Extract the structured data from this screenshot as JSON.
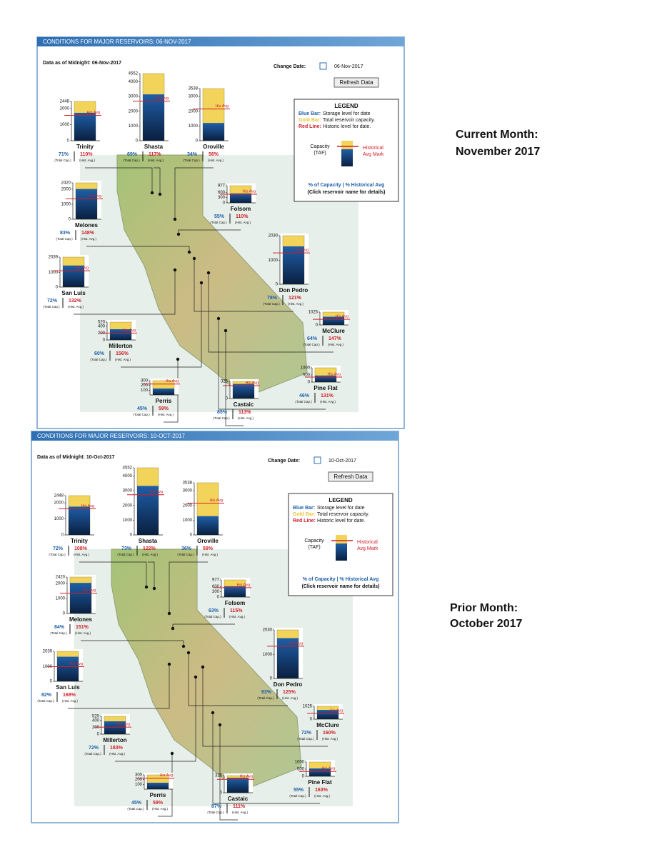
{
  "side_notes": [
    [
      "Current Month:",
      "November 2017"
    ],
    [
      "Prior Month:",
      "October 2017"
    ]
  ],
  "ui": {
    "change_date_label": "Change Date:",
    "refresh": "Refresh Data",
    "his_avg": "His Avg",
    "total_cap": "(Total Cap.)",
    "hist_avg": "(Hist. Avg.)"
  },
  "legend": {
    "title": "LEGEND",
    "blue_key": "Blue Bar:",
    "blue_text": "Storage level for date",
    "gold_key": "Gold Bar:",
    "gold_text": "Total reservoir capacity.",
    "red_key": "Red Line:",
    "red_text": "Historic level for date.",
    "capacity": "Capacity",
    "taf": "(TAF)",
    "historical": "Historical",
    "avg_mark": "Avg Mark",
    "pct_line": "% of Capacity | % Historical Avg",
    "click": "(Click reservoir name for details)"
  },
  "panels": [
    {
      "title": "CONDITIONS FOR MAJOR RESERVOIRS: 06-NOV-2017",
      "as_of": "Data as of Midnight: 06-Nov-2017",
      "change_date": "06-Nov-2017",
      "reservoirs": [
        {
          "name": "Trinity",
          "ylim": [
            0,
            2448
          ],
          "yticks": [
            0,
            1000,
            2000,
            2448
          ],
          "capacity_pct": 71,
          "capacity_pct_label": "71%",
          "hist_pct": 110,
          "hist_pct_label": "110%"
        },
        {
          "name": "Shasta",
          "ylim": [
            0,
            4552
          ],
          "yticks": [
            0,
            1000,
            2000,
            3000,
            4000,
            4552
          ],
          "capacity_pct": 69,
          "capacity_pct_label": "69%",
          "hist_pct": 117,
          "hist_pct_label": "117%"
        },
        {
          "name": "Oroville",
          "ylim": [
            0,
            3538
          ],
          "yticks": [
            0,
            1000,
            2000,
            3000,
            3538
          ],
          "capacity_pct": 34,
          "capacity_pct_label": "34%",
          "hist_pct": 56,
          "hist_pct_label": "56%"
        },
        {
          "name": "Melones",
          "ylim": [
            0,
            2420
          ],
          "yticks": [
            0,
            1000,
            2000,
            2420
          ],
          "capacity_pct": 83,
          "capacity_pct_label": "83%",
          "hist_pct": 148,
          "hist_pct_label": "148%"
        },
        {
          "name": "Folsom",
          "ylim": [
            0,
            977
          ],
          "yticks": [
            0,
            300,
            600,
            977
          ],
          "capacity_pct": 55,
          "capacity_pct_label": "55%",
          "hist_pct": 110,
          "hist_pct_label": "110%"
        },
        {
          "name": "Don Pedro",
          "ylim": [
            0,
            2030
          ],
          "yticks": [
            0,
            1000,
            2030
          ],
          "capacity_pct": 78,
          "capacity_pct_label": "78%",
          "hist_pct": 121,
          "hist_pct_label": "121%"
        },
        {
          "name": "San Luis",
          "ylim": [
            0,
            2039
          ],
          "yticks": [
            0,
            1000,
            2039
          ],
          "capacity_pct": 72,
          "capacity_pct_label": "72%",
          "hist_pct": 132,
          "hist_pct_label": "132%"
        },
        {
          "name": "McClure",
          "ylim": [
            0,
            1025
          ],
          "yticks": [
            0,
            1025
          ],
          "capacity_pct": 64,
          "capacity_pct_label": "64%",
          "hist_pct": 147,
          "hist_pct_label": "147%"
        },
        {
          "name": "Millerton",
          "ylim": [
            0,
            520
          ],
          "yticks": [
            0,
            200,
            400,
            520
          ],
          "capacity_pct": 60,
          "capacity_pct_label": "60%",
          "hist_pct": 156,
          "hist_pct_label": "156%"
        },
        {
          "name": "Pine Flat",
          "ylim": [
            0,
            1000
          ],
          "yticks": [
            0,
            500,
            1000
          ],
          "capacity_pct": 46,
          "capacity_pct_label": "46%",
          "hist_pct": 131,
          "hist_pct_label": "131%"
        },
        {
          "name": "Perris",
          "ylim": [
            0,
            300
          ],
          "yticks": [
            100,
            200,
            300
          ],
          "capacity_pct": 45,
          "capacity_pct_label": "45%",
          "hist_pct": 59,
          "hist_pct_label": "59%"
        },
        {
          "name": "Castaic",
          "ylim": [
            0,
            325
          ],
          "yticks": [
            0,
            325
          ],
          "capacity_pct": 85,
          "capacity_pct_label": "85%",
          "hist_pct": 113,
          "hist_pct_label": "113%"
        }
      ]
    },
    {
      "title": "CONDITIONS FOR MAJOR RESERVOIRS: 10-OCT-2017",
      "as_of": "Data as of Midnight: 10-Oct-2017",
      "change_date": "10-Oct-2017",
      "reservoirs": [
        {
          "name": "Trinity",
          "ylim": [
            0,
            2448
          ],
          "yticks": [
            0,
            1000,
            2000,
            2448
          ],
          "capacity_pct": 72,
          "capacity_pct_label": "72%",
          "hist_pct": 108,
          "hist_pct_label": "108%"
        },
        {
          "name": "Shasta",
          "ylim": [
            0,
            4552
          ],
          "yticks": [
            0,
            1000,
            2000,
            3000,
            4000,
            4552
          ],
          "capacity_pct": 73,
          "capacity_pct_label": "73%",
          "hist_pct": 122,
          "hist_pct_label": "122%"
        },
        {
          "name": "Oroville",
          "ylim": [
            0,
            3538
          ],
          "yticks": [
            0,
            1000,
            2000,
            3000,
            3538
          ],
          "capacity_pct": 36,
          "capacity_pct_label": "36%",
          "hist_pct": 59,
          "hist_pct_label": "59%"
        },
        {
          "name": "Melones",
          "ylim": [
            0,
            2420
          ],
          "yticks": [
            0,
            1000,
            2000,
            2420
          ],
          "capacity_pct": 84,
          "capacity_pct_label": "84%",
          "hist_pct": 151,
          "hist_pct_label": "151%"
        },
        {
          "name": "Folsom",
          "ylim": [
            0,
            977
          ],
          "yticks": [
            0,
            300,
            600,
            977
          ],
          "capacity_pct": 63,
          "capacity_pct_label": "63%",
          "hist_pct": 115,
          "hist_pct_label": "115%"
        },
        {
          "name": "Don Pedro",
          "ylim": [
            0,
            2030
          ],
          "yticks": [
            0,
            1000,
            2030
          ],
          "capacity_pct": 83,
          "capacity_pct_label": "83%",
          "hist_pct": 125,
          "hist_pct_label": "125%"
        },
        {
          "name": "San Luis",
          "ylim": [
            0,
            2039
          ],
          "yticks": [
            0,
            1000,
            2039
          ],
          "capacity_pct": 82,
          "capacity_pct_label": "82%",
          "hist_pct": 168,
          "hist_pct_label": "168%"
        },
        {
          "name": "McClure",
          "ylim": [
            0,
            1025
          ],
          "yticks": [
            0,
            1025
          ],
          "capacity_pct": 72,
          "capacity_pct_label": "72%",
          "hist_pct": 160,
          "hist_pct_label": "160%"
        },
        {
          "name": "Millerton",
          "ylim": [
            0,
            520
          ],
          "yticks": [
            0,
            200,
            400,
            520
          ],
          "capacity_pct": 72,
          "capacity_pct_label": "72%",
          "hist_pct": 183,
          "hist_pct_label": "183%"
        },
        {
          "name": "Pine Flat",
          "ylim": [
            0,
            1000
          ],
          "yticks": [
            0,
            500,
            1000
          ],
          "capacity_pct": 55,
          "capacity_pct_label": "55%",
          "hist_pct": 163,
          "hist_pct_label": "163%"
        },
        {
          "name": "Perris",
          "ylim": [
            0,
            300
          ],
          "yticks": [
            100,
            200,
            300
          ],
          "capacity_pct": 45,
          "capacity_pct_label": "45%",
          "hist_pct": 59,
          "hist_pct_label": "59%"
        },
        {
          "name": "Castaic",
          "ylim": [
            0,
            325
          ],
          "yticks": [
            0,
            325
          ],
          "capacity_pct": 87,
          "capacity_pct_label": "87%",
          "hist_pct": 111,
          "hist_pct_label": "111%"
        }
      ]
    }
  ]
}
